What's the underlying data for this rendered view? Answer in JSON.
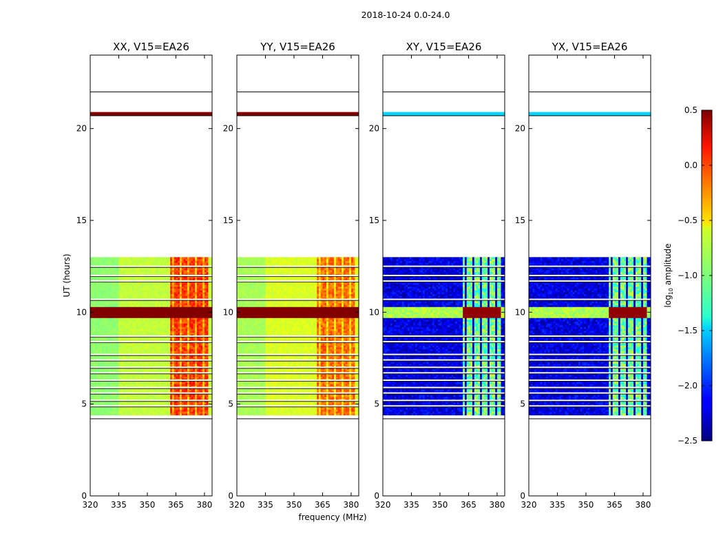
{
  "chart_data": {
    "type": "heatmap",
    "suptitle": "2018-10-24 0.0-24.0",
    "xlabel": "frequency (MHz)",
    "ylabel": "UT (hours)",
    "xlim": [
      320,
      384
    ],
    "ylim": [
      0,
      24
    ],
    "x_ticks": [
      "320",
      "335",
      "350",
      "365",
      "380"
    ],
    "x_tick_values": [
      320,
      335,
      350,
      365,
      380
    ],
    "y_ticks": [
      "0",
      "5",
      "10",
      "15",
      "20"
    ],
    "y_tick_values": [
      0,
      5,
      10,
      15,
      20
    ],
    "colorbar": {
      "label": "log10 amplitude",
      "label_base": "log",
      "label_sub": "10",
      "label_rest": " amplitude",
      "colormap": "jet",
      "range": [
        -2.5,
        0.5
      ],
      "ticks": [
        "0.5",
        "0.0",
        "−0.5",
        "−1.0",
        "−1.5",
        "−2.0",
        "−2.5"
      ],
      "tick_values": [
        0.5,
        0.0,
        -0.5,
        -1.0,
        -1.5,
        -2.0,
        -2.5
      ]
    },
    "observation": {
      "data_ut_range": [
        4.4,
        13.0
      ],
      "flare_ut_range": [
        9.7,
        10.2
      ],
      "top_strip_ut_range": [
        20.7,
        20.9
      ],
      "blank_ut_lines": [
        4.2,
        4.9,
        5.2,
        5.6,
        5.9,
        6.3,
        6.7,
        7.0,
        7.4,
        7.7,
        8.4,
        8.7,
        10.7,
        11.7,
        12.0,
        12.5,
        20.7,
        22.0
      ],
      "strong_band_mhz": [
        362,
        381
      ]
    },
    "panels": [
      {
        "title": "XX, V15=EA26",
        "kind": "parallel",
        "base_level": -0.85,
        "band_level": -0.05,
        "flare_level": 0.5,
        "strip_level": 0.5
      },
      {
        "title": "YY, V15=EA26",
        "kind": "parallel",
        "base_level": -0.78,
        "band_level": -0.2,
        "flare_level": 0.5,
        "strip_level": 0.5
      },
      {
        "title": "XY, V15=EA26",
        "kind": "cross",
        "base_level": -2.3,
        "band_level": -1.05,
        "flare_level": 0.45,
        "strip_level": -1.5
      },
      {
        "title": "YX, V15=EA26",
        "kind": "cross",
        "base_level": -2.3,
        "band_level": -1.05,
        "flare_level": 0.45,
        "strip_level": -1.5
      }
    ]
  }
}
